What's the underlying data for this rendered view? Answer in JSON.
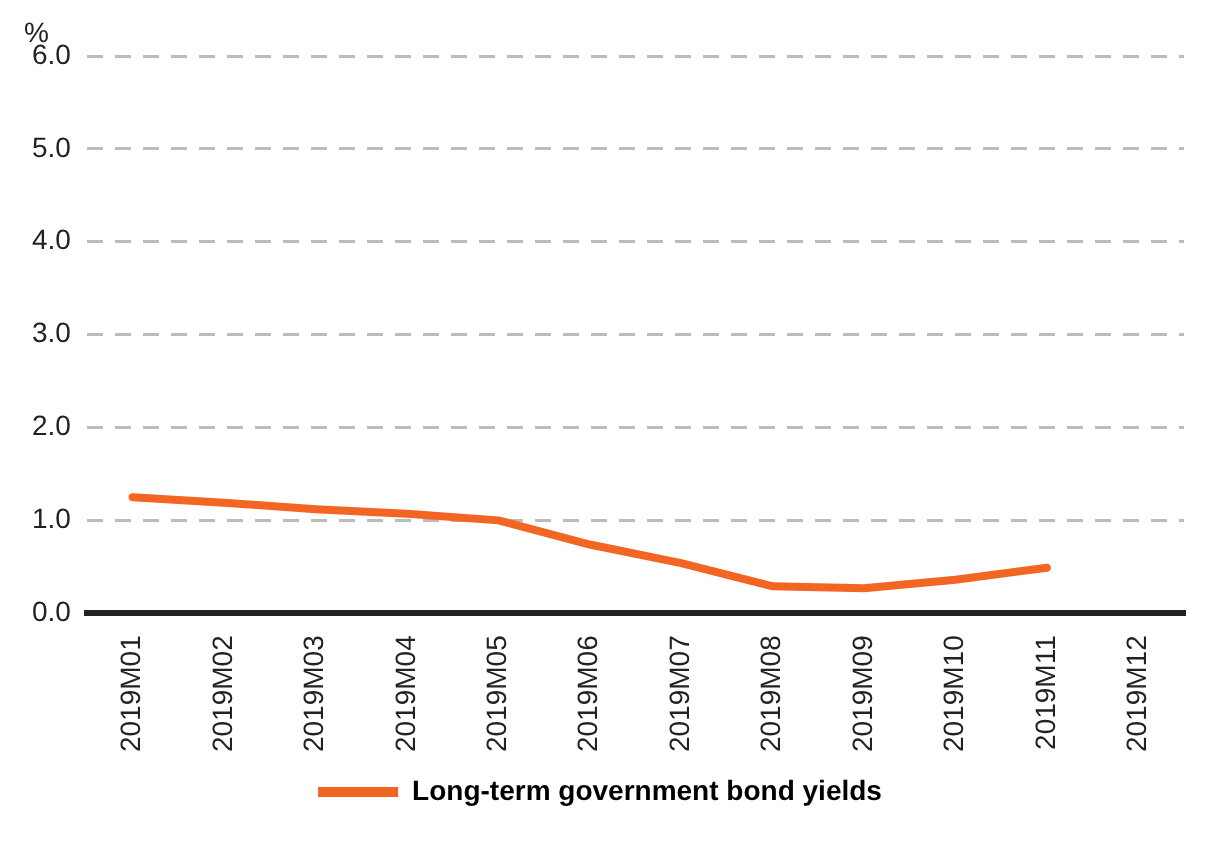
{
  "chart_data": {
    "type": "line",
    "ylabel": "%",
    "categories": [
      "2019M01",
      "2019M02",
      "2019M03",
      "2019M04",
      "2019M05",
      "2019M06",
      "2019M07",
      "2019M08",
      "2019M09",
      "2019M10",
      "2019M11",
      "2019M12"
    ],
    "series": [
      {
        "name": "Long-term government bond yields",
        "color": "#f26522",
        "values": [
          1.25,
          1.19,
          1.12,
          1.07,
          1.0,
          0.74,
          0.54,
          0.29,
          0.27,
          0.36,
          0.49,
          null
        ]
      }
    ],
    "ylim": [
      0,
      6
    ],
    "yticks": [
      {
        "value": 0,
        "label": "0.0"
      },
      {
        "value": 1,
        "label": "1.0"
      },
      {
        "value": 2,
        "label": "2.0"
      },
      {
        "value": 3,
        "label": "3.0"
      },
      {
        "value": 4,
        "label": "4.0"
      },
      {
        "value": 5,
        "label": "5.0"
      },
      {
        "value": 6,
        "label": "6.0"
      }
    ],
    "grid": "y",
    "legend": "bottom",
    "marker": "none",
    "line_style": "solid"
  }
}
